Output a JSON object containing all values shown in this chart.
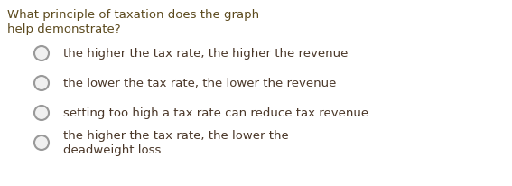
{
  "question_line1": "What principle of taxation does the graph",
  "question_line2": "help demonstrate?",
  "question_color": "#5C4A1E",
  "options": [
    "the higher the tax rate, the higher the revenue",
    "the lower the tax rate, the lower the revenue",
    "setting too high a tax rate can reduce tax revenue",
    "the higher the tax rate, the lower the\ndeadweight loss"
  ],
  "option_color": "#4A3728",
  "circle_edge_color": "#999999",
  "circle_face_color": "#f0f0f0",
  "bg_color": "#ffffff",
  "question_fontsize": 9.5,
  "option_fontsize": 9.5
}
